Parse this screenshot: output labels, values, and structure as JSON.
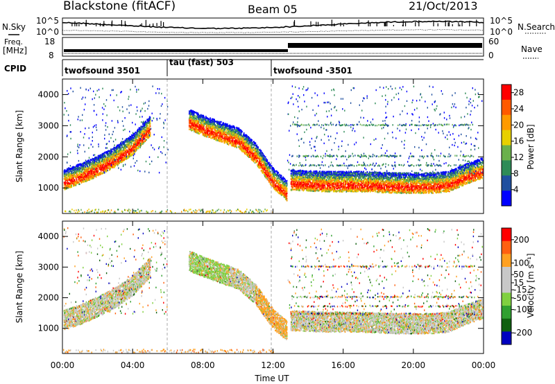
{
  "header": {
    "station": "Blackstone (fitACF)",
    "beam": "Beam 05",
    "date": "21/Oct/2013"
  },
  "strip": {
    "nsky_label": "N.Sky",
    "nsearch_label": "N.Search",
    "noise_ticks": [
      "10^5",
      "10^0"
    ],
    "freq_label_top": "Freq.",
    "freq_label_unit": "[MHz]",
    "freq_ticks": [
      "18",
      "8"
    ],
    "nave_label": "Nave",
    "nave_ticks": [
      "60",
      "0"
    ],
    "cpid_label": "CPID",
    "cpid_segments": [
      {
        "name": "twofsound 3501",
        "start_hour": 0,
        "end_hour": 6
      },
      {
        "name": "tau (fast) 503",
        "start_hour": 6,
        "end_hour": 12
      },
      {
        "name": "twofsound -3501",
        "start_hour": 12,
        "end_hour": 24
      }
    ]
  },
  "chart_data": [
    {
      "type": "heatmap",
      "parameter": "Power",
      "ylabel": "Slant Range [km]",
      "xlim": [
        0,
        24
      ],
      "ylim": [
        180,
        4500
      ],
      "yticks": [
        1000,
        2000,
        3000,
        4000
      ],
      "colorbar": {
        "label": "Power [dB]",
        "ticks": [
          4,
          8,
          12,
          16,
          20,
          24,
          28
        ],
        "range": [
          0,
          30
        ]
      },
      "bands": [
        {
          "x": [
            0,
            1,
            2,
            3,
            4,
            5
          ],
          "y": [
            1150,
            1350,
            1600,
            1900,
            2300,
            2900
          ]
        },
        {
          "x": [
            7.2,
            8,
            9,
            10,
            11,
            12,
            12.8
          ],
          "y": [
            3100,
            2900,
            2700,
            2500,
            2000,
            1200,
            800
          ]
        },
        {
          "x": [
            13,
            15,
            17,
            19,
            21,
            22,
            23,
            24
          ],
          "y": [
            1150,
            1100,
            1100,
            1050,
            1050,
            1100,
            1350,
            1550
          ]
        }
      ]
    },
    {
      "type": "heatmap",
      "parameter": "Velocity",
      "ylabel": "Slant Range [km]",
      "xlim": [
        0,
        24
      ],
      "ylim": [
        180,
        4500
      ],
      "yticks": [
        1000,
        2000,
        3000,
        4000
      ],
      "colorbar": {
        "label": "Velocity [m s⁻¹]",
        "ticks": [
          200,
          100,
          50,
          15,
          -15,
          -50,
          -100,
          -200
        ],
        "range": [
          -250,
          250
        ]
      },
      "bands": [
        {
          "x": [
            0,
            1,
            2,
            3,
            4,
            5
          ],
          "y": [
            1150,
            1350,
            1600,
            1900,
            2300,
            2900
          ]
        },
        {
          "x": [
            7.2,
            8,
            9,
            10,
            11,
            12,
            12.8
          ],
          "y": [
            3100,
            2900,
            2700,
            2500,
            2000,
            1200,
            800
          ]
        },
        {
          "x": [
            13,
            15,
            17,
            19,
            21,
            22,
            23,
            24
          ],
          "y": [
            1150,
            1100,
            1100,
            1050,
            1050,
            1100,
            1350,
            1550
          ]
        }
      ]
    }
  ],
  "xaxis": {
    "ticks": [
      "00:00",
      "04:00",
      "08:00",
      "12:00",
      "16:00",
      "20:00",
      "00:00"
    ],
    "label": "Time UT"
  },
  "colors": {
    "power_scale": [
      "#0000ff",
      "#1f4f9f",
      "#2e8b57",
      "#6ab04c",
      "#e8d000",
      "#ff9a00",
      "#ff5a00",
      "#ff0000"
    ],
    "velocity_scale": [
      "#0000c0",
      "#106010",
      "#30a030",
      "#80d040",
      "#c8c8c8",
      "#c8c8c8",
      "#ffa020",
      "#ff6010",
      "#ff0000"
    ]
  }
}
